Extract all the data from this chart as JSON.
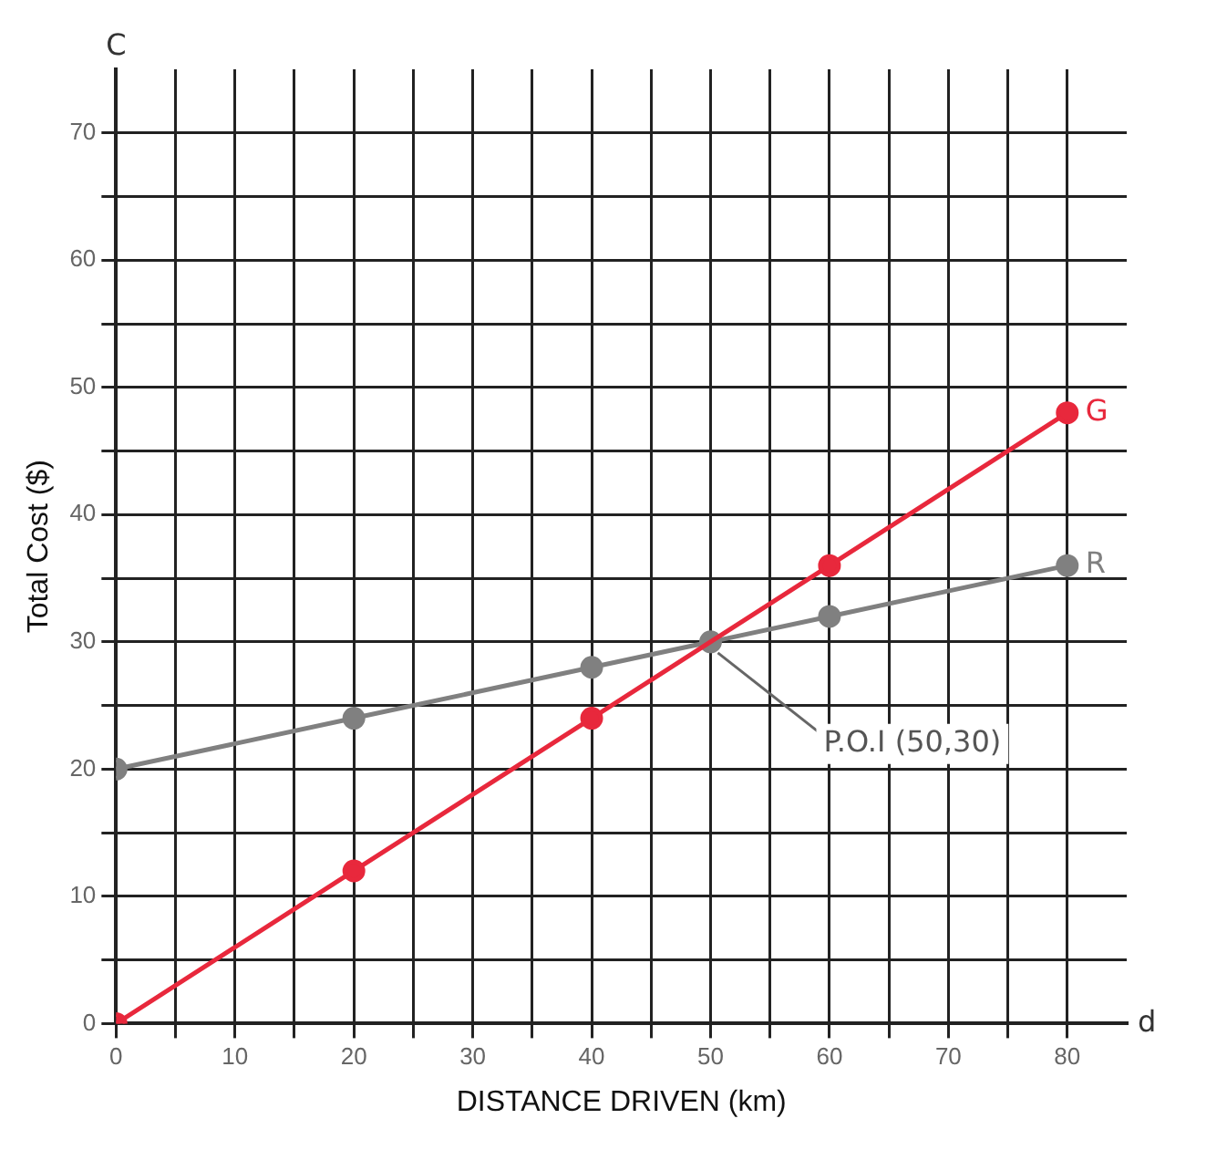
{
  "chart_data": {
    "type": "line",
    "xlabel": "DISTANCE DRIVEN (km)",
    "ylabel": "Total Cost ($)",
    "series": [
      {
        "name": "G",
        "color": "#e8283c",
        "x": [
          0,
          20,
          40,
          60,
          80
        ],
        "values": [
          0,
          12,
          24,
          36,
          48
        ]
      },
      {
        "name": "R",
        "color": "#808080",
        "x": [
          0,
          20,
          40,
          50,
          60,
          80
        ],
        "values": [
          20,
          24,
          28,
          30,
          32,
          36
        ]
      }
    ],
    "xlim": [
      0,
      85
    ],
    "ylim": [
      0,
      75
    ],
    "xticks": [
      0,
      {
        "value": 5,
        "label": null
      },
      10,
      {
        "value": 15,
        "label": null
      },
      20,
      {
        "value": 25,
        "label": null
      },
      30,
      {
        "value": 35,
        "label": null
      },
      40,
      {
        "value": 45,
        "label": null
      },
      50,
      {
        "value": 55,
        "label": null
      },
      60,
      {
        "value": 65,
        "label": null
      },
      70,
      {
        "value": 75,
        "label": null
      },
      80
    ],
    "yticks": [
      0,
      {
        "value": 5,
        "label": null
      },
      10,
      {
        "value": 15,
        "label": null
      },
      20,
      {
        "value": 25,
        "label": null
      },
      30,
      {
        "value": 35,
        "label": null
      },
      40,
      {
        "value": 45,
        "label": null
      },
      50,
      {
        "value": 55,
        "label": null
      },
      60,
      {
        "value": 65,
        "label": null
      },
      70
    ],
    "annotations": [
      "C",
      "d",
      {
        "text": "P.O.I (50,30)",
        "x": 50,
        "y": 30
      }
    ],
    "grid": true,
    "legend": false,
    "marker": "circle",
    "line_style": "solid"
  }
}
